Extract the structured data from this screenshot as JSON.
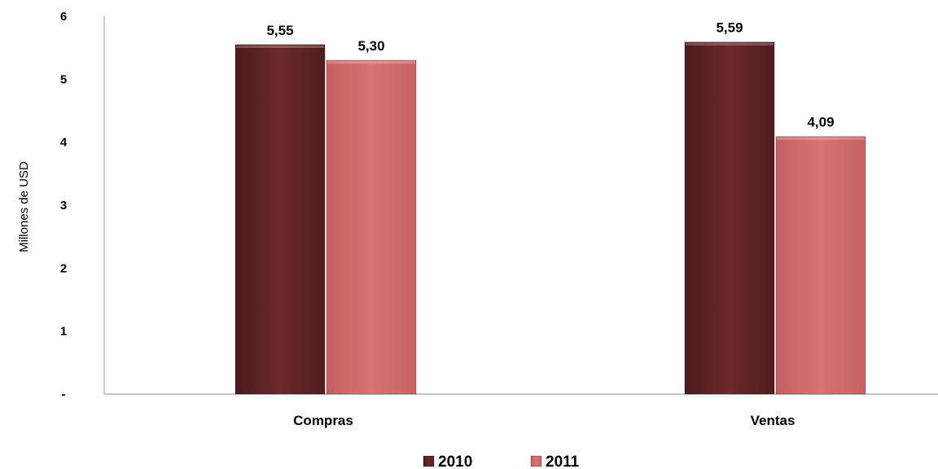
{
  "chart_data": {
    "type": "bar",
    "categories": [
      "Compras",
      "Ventas"
    ],
    "series": [
      {
        "name": "2010",
        "values": [
          5.55,
          5.59
        ],
        "labels": [
          "5,55",
          "5,59"
        ],
        "color": "#612527"
      },
      {
        "name": "2011",
        "values": [
          5.3,
          4.09
        ],
        "labels": [
          "5,30",
          "4,09"
        ],
        "color": "#d46e70"
      }
    ],
    "yticks": [
      {
        "value": 0,
        "label": "-"
      },
      {
        "value": 1,
        "label": "1"
      },
      {
        "value": 2,
        "label": "2"
      },
      {
        "value": 3,
        "label": "3"
      },
      {
        "value": 4,
        "label": "4"
      },
      {
        "value": 5,
        "label": "5"
      },
      {
        "value": 6,
        "label": "6"
      }
    ],
    "ylim": [
      0,
      6
    ],
    "ylabel": "Millones de USD",
    "xlabel": "",
    "title": "",
    "grid": false,
    "legend_position": "bottom"
  }
}
